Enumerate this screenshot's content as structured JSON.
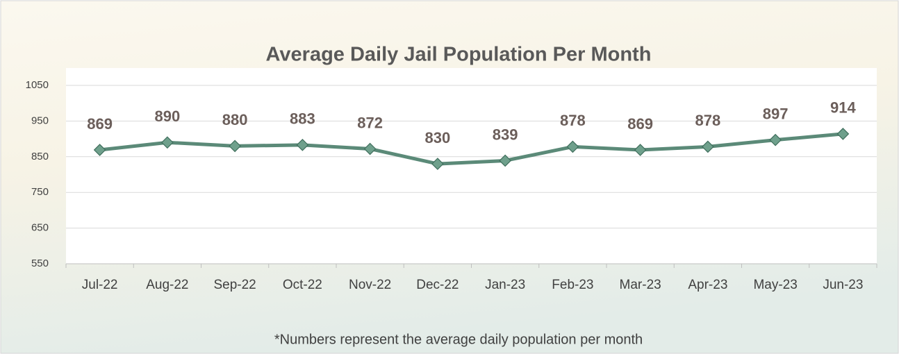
{
  "chart_data": {
    "type": "line",
    "title": "Average Daily Jail Population Per Month",
    "categories": [
      "Jul-22",
      "Aug-22",
      "Sep-22",
      "Oct-22",
      "Nov-22",
      "Dec-22",
      "Jan-23",
      "Feb-23",
      "Mar-23",
      "Apr-23",
      "May-23",
      "Jun-23"
    ],
    "values": [
      869,
      890,
      880,
      883,
      872,
      830,
      839,
      878,
      869,
      878,
      897,
      914
    ],
    "color": "#5b8a78",
    "ylim": [
      550,
      1050
    ],
    "yticks": [
      550,
      650,
      750,
      850,
      950,
      1050
    ],
    "grid": true,
    "annotation": "*Numbers represent the average daily population per month"
  }
}
